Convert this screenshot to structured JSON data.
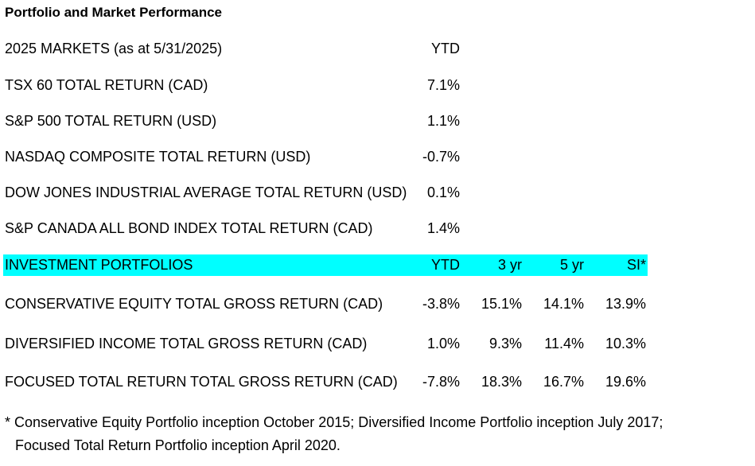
{
  "title": "Portfolio and Market Performance",
  "markets": {
    "header": {
      "label": "2025 MARKETS (as at 5/31/2025)",
      "ytd": "YTD"
    },
    "rows": [
      {
        "label": "TSX 60 TOTAL RETURN (CAD)",
        "ytd": "7.1%"
      },
      {
        "label": "S&P 500 TOTAL RETURN (USD)",
        "ytd": "1.1%"
      },
      {
        "label": "NASDAQ COMPOSITE TOTAL RETURN (USD)",
        "ytd": "-0.7%"
      },
      {
        "label": "DOW JONES INDUSTRIAL AVERAGE TOTAL RETURN (USD)",
        "ytd": "0.1%"
      },
      {
        "label": "S&P CANADA ALL BOND INDEX TOTAL RETURN (CAD)",
        "ytd": "1.4%"
      }
    ]
  },
  "portfolios": {
    "header": {
      "label": "INVESTMENT PORTFOLIOS",
      "ytd": "YTD",
      "yr3": "3 yr",
      "yr5": "5 yr",
      "si": "SI*"
    },
    "highlight_color": "#00ffff",
    "rows": [
      {
        "label": "CONSERVATIVE EQUITY TOTAL GROSS RETURN (CAD)",
        "ytd": "-3.8%",
        "yr3": "15.1%",
        "yr5": "14.1%",
        "si": "13.9%"
      },
      {
        "label": "DIVERSIFIED INCOME TOTAL GROSS RETURN (CAD)",
        "ytd": "1.0%",
        "yr3": "9.3%",
        "yr5": "11.4%",
        "si": "10.3%"
      },
      {
        "label": "FOCUSED TOTAL RETURN TOTAL GROSS RETURN (CAD)",
        "ytd": "-7.8%",
        "yr3": "18.3%",
        "yr5": "16.7%",
        "si": "19.6%"
      }
    ]
  },
  "footnote": {
    "line1": "* Conservative Equity Portfolio inception October 2015; Diversified Income Portfolio inception July 2017;",
    "line2": "Focused Total Return Portfolio inception April 2020."
  }
}
